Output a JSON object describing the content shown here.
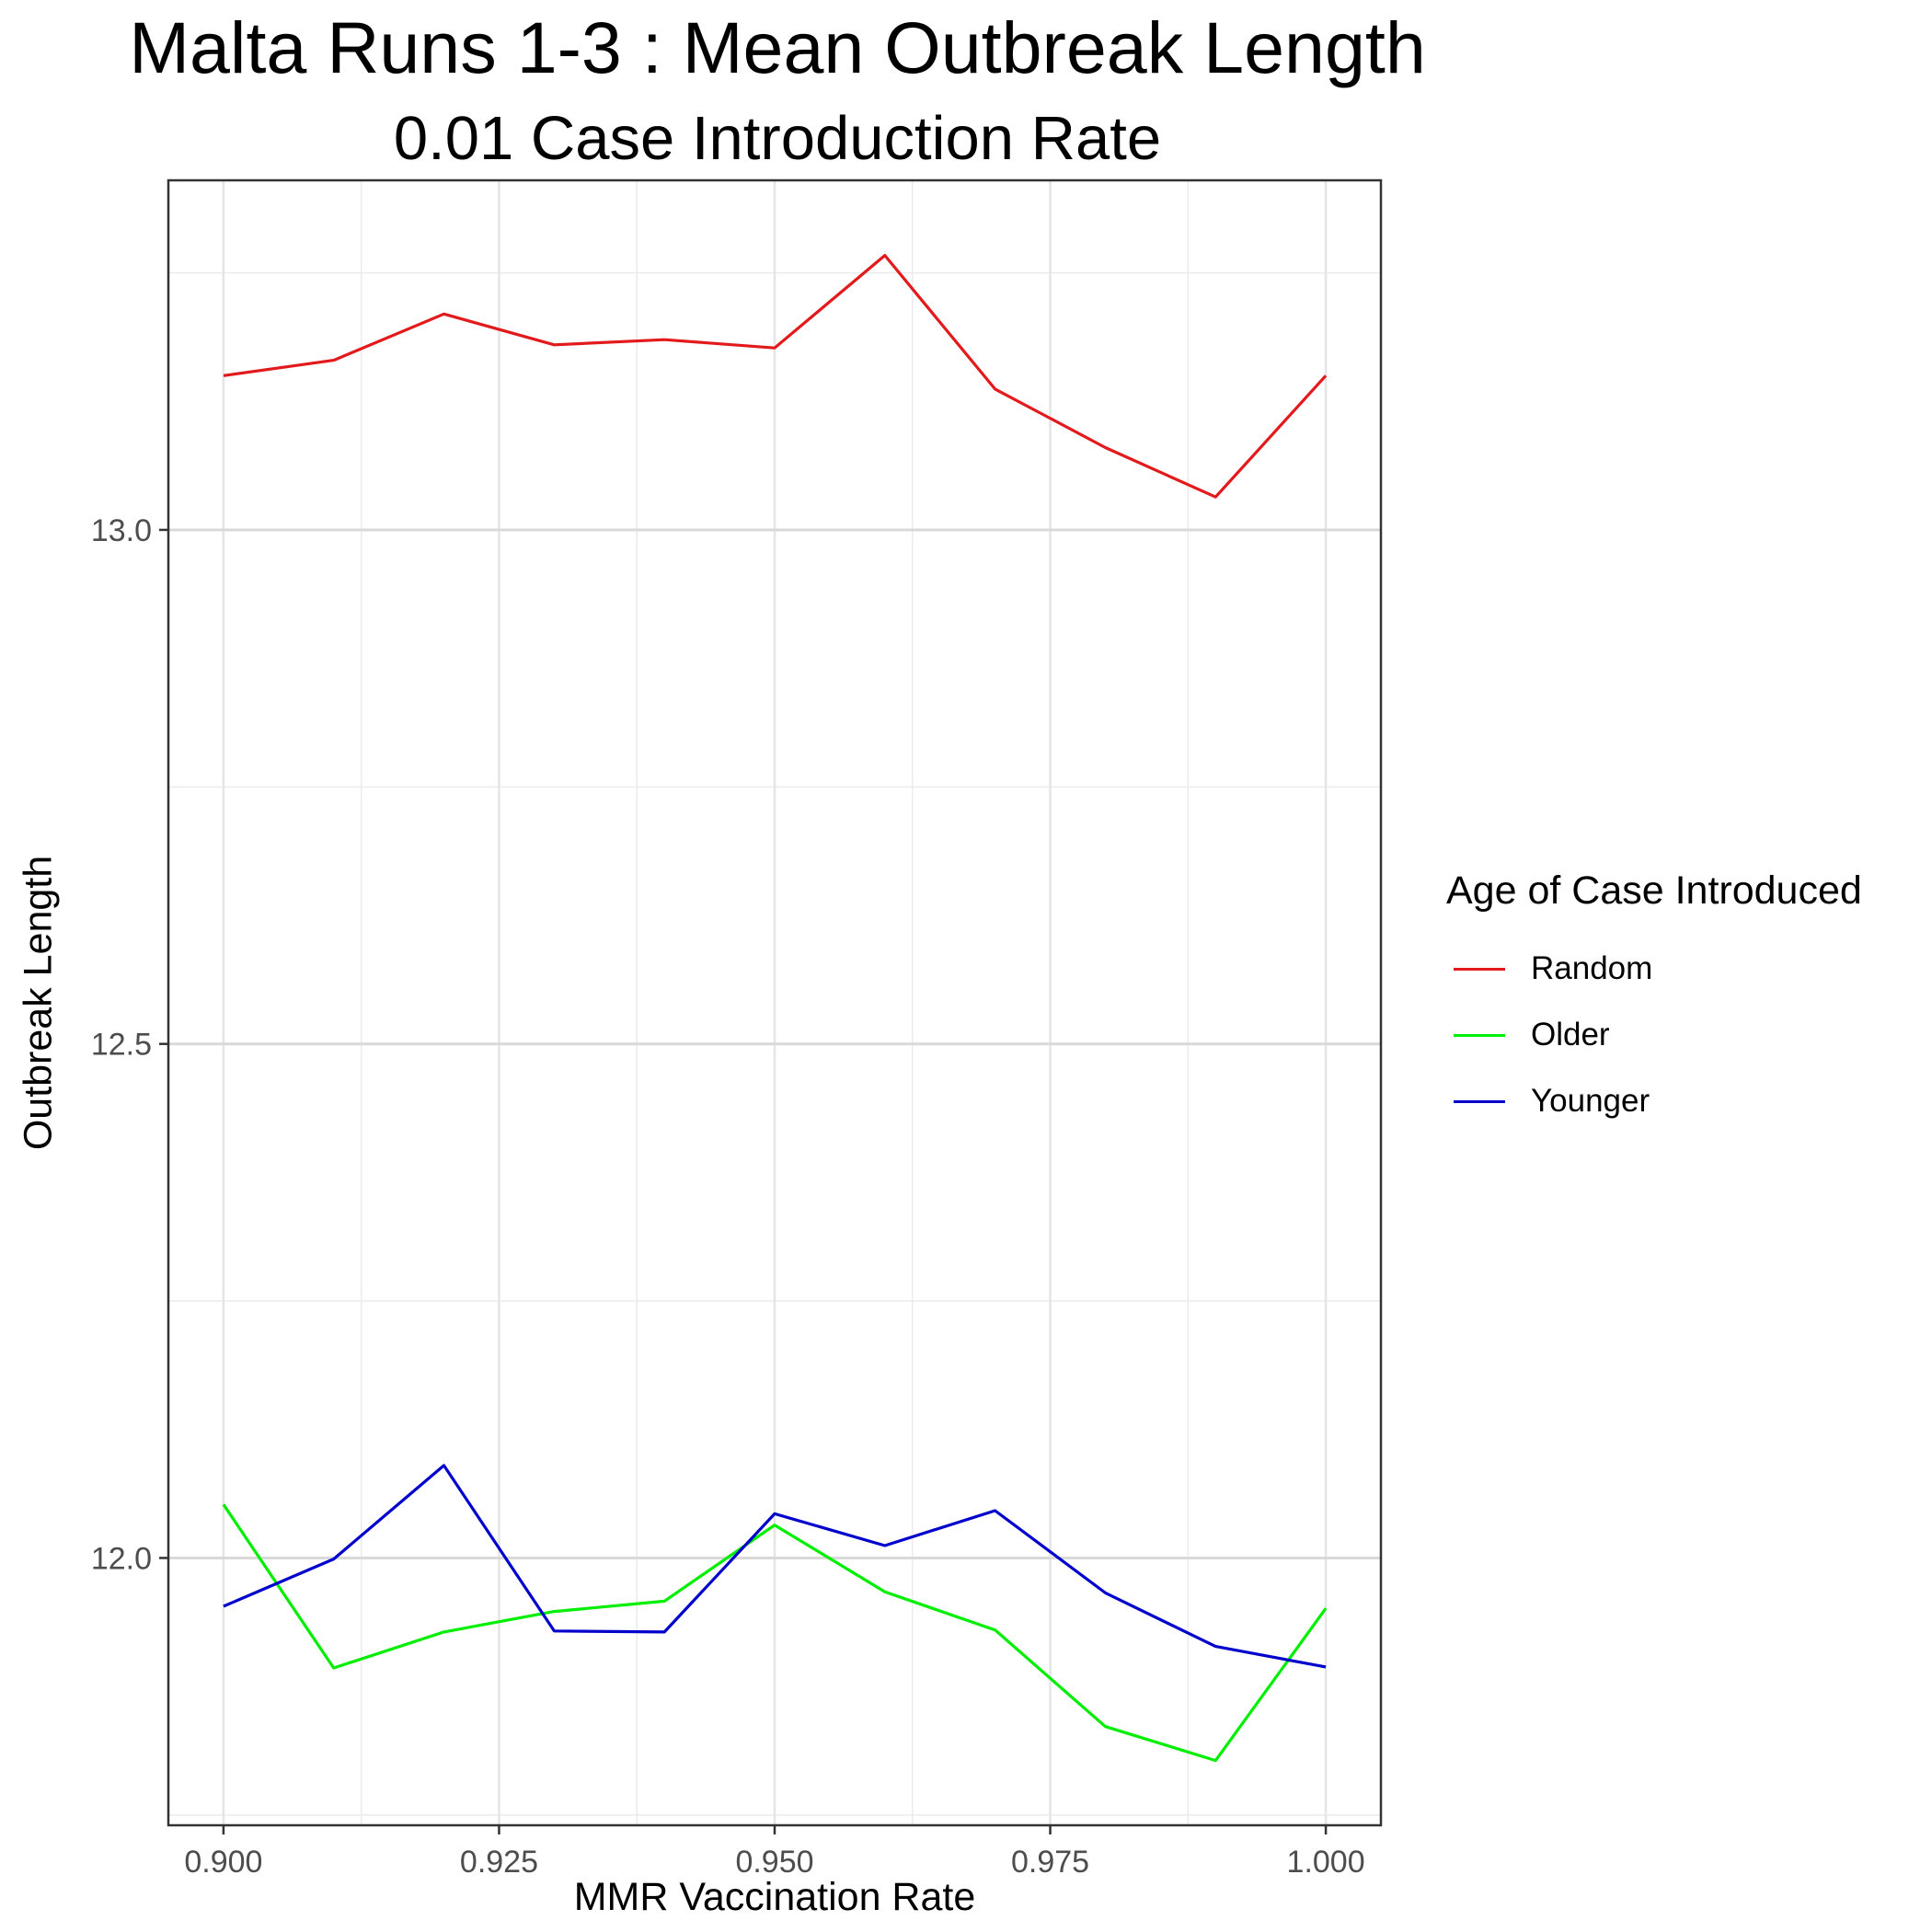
{
  "chart_data": {
    "type": "line",
    "title": "Malta Runs 1-3 : Mean Outbreak Length",
    "subtitle": "0.01 Case Introduction Rate",
    "xlabel": "MMR Vaccination Rate",
    "ylabel": "Outbreak Length",
    "xlim": [
      0.895,
      1.005
    ],
    "ylim": [
      11.74,
      13.34
    ],
    "x_ticks": [
      0.9,
      0.925,
      0.95,
      0.975,
      1.0
    ],
    "x_tick_labels": [
      "0.900",
      "0.925",
      "0.950",
      "0.975",
      "1.000"
    ],
    "y_ticks": [
      12.0,
      12.5,
      13.0
    ],
    "y_tick_labels": [
      "12.0",
      "12.5",
      "13.0"
    ],
    "grid": true,
    "legend_title": "Age of Case Introduced",
    "legend_position": "right",
    "x": [
      0.9,
      0.91,
      0.92,
      0.93,
      0.94,
      0.95,
      0.96,
      0.97,
      0.98,
      0.99,
      1.0
    ],
    "series": [
      {
        "name": "Random",
        "color": "#e31a1c",
        "values": [
          13.15,
          13.165,
          13.21,
          13.18,
          13.185,
          13.177,
          13.267,
          13.137,
          13.08,
          13.032,
          13.15
        ]
      },
      {
        "name": "Older",
        "color": "#00ee00",
        "values": [
          12.052,
          11.893,
          11.928,
          11.948,
          11.958,
          12.032,
          11.967,
          11.93,
          11.836,
          11.803,
          11.951
        ]
      },
      {
        "name": "Younger",
        "color": "#0000cc",
        "values": [
          11.953,
          11.999,
          12.09,
          11.929,
          11.928,
          12.043,
          12.012,
          12.046,
          11.966,
          11.914,
          11.894
        ]
      }
    ]
  }
}
